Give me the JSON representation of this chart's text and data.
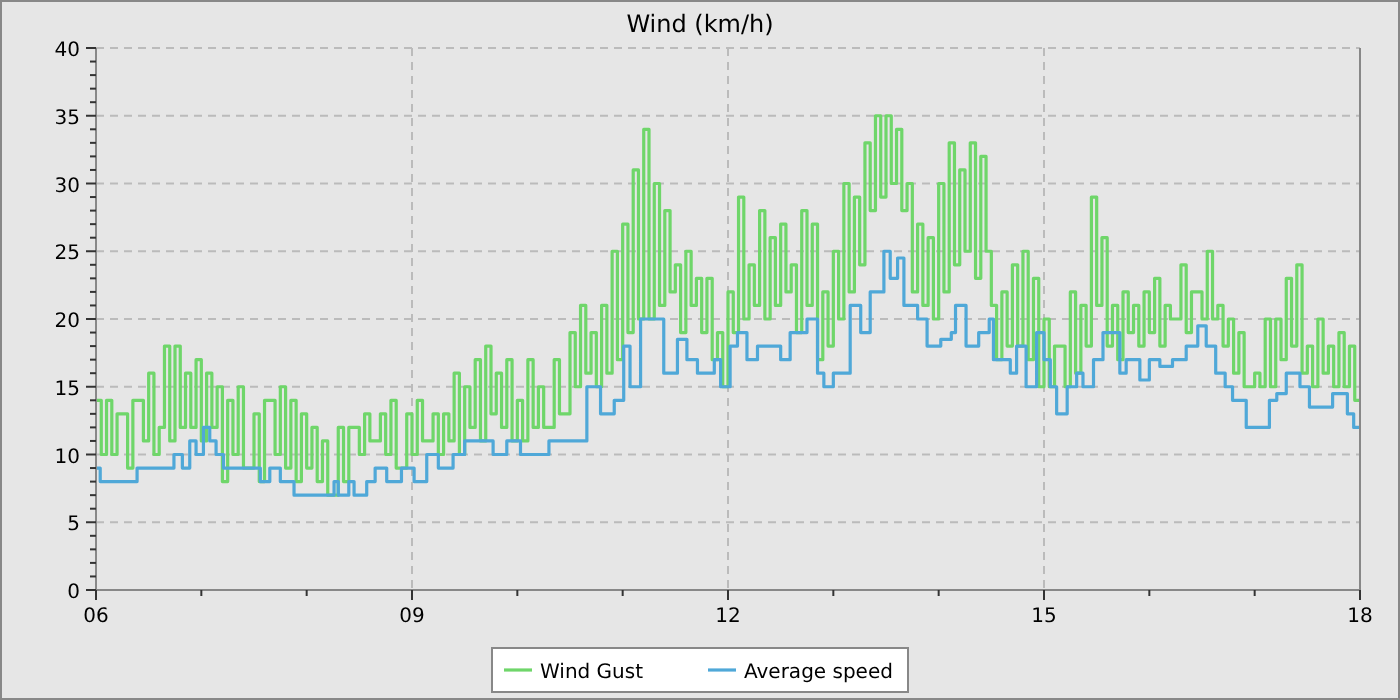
{
  "chart_data": {
    "type": "step",
    "title": "Wind (km/h)",
    "legend": "bottom",
    "grid": true,
    "line_style": "solid",
    "xlim": [
      6,
      18
    ],
    "ylim": [
      0,
      40
    ],
    "xticks": [
      {
        "value": 6,
        "label": "06"
      },
      {
        "value": 7,
        "label": null
      },
      {
        "value": 8,
        "label": null
      },
      {
        "value": 9,
        "label": "09"
      },
      {
        "value": 10,
        "label": null
      },
      {
        "value": 11,
        "label": null
      },
      {
        "value": 12,
        "label": "12"
      },
      {
        "value": 13,
        "label": null
      },
      {
        "value": 14,
        "label": null
      },
      {
        "value": 15,
        "label": "15"
      },
      {
        "value": 16,
        "label": null
      },
      {
        "value": 17,
        "label": null
      },
      {
        "value": 18,
        "label": "18"
      }
    ],
    "yticks": [
      0,
      {
        "value": 1,
        "label": null
      },
      {
        "value": 2,
        "label": null
      },
      {
        "value": 3,
        "label": null
      },
      {
        "value": 4,
        "label": null
      },
      5,
      {
        "value": 6,
        "label": null
      },
      {
        "value": 7,
        "label": null
      },
      {
        "value": 8,
        "label": null
      },
      {
        "value": 9,
        "label": null
      },
      10,
      {
        "value": 11,
        "label": null
      },
      {
        "value": 12,
        "label": null
      },
      {
        "value": 13,
        "label": null
      },
      {
        "value": 14,
        "label": null
      },
      15,
      {
        "value": 16,
        "label": null
      },
      {
        "value": 17,
        "label": null
      },
      {
        "value": 18,
        "label": null
      },
      {
        "value": 19,
        "label": null
      },
      20,
      {
        "value": 21,
        "label": null
      },
      {
        "value": 22,
        "label": null
      },
      {
        "value": 23,
        "label": null
      },
      {
        "value": 24,
        "label": null
      },
      25,
      {
        "value": 26,
        "label": null
      },
      {
        "value": 27,
        "label": null
      },
      {
        "value": 28,
        "label": null
      },
      {
        "value": 29,
        "label": null
      },
      30,
      {
        "value": 31,
        "label": null
      },
      {
        "value": 32,
        "label": null
      },
      {
        "value": 33,
        "label": null
      },
      {
        "value": 34,
        "label": null
      },
      35,
      {
        "value": 36,
        "label": null
      },
      {
        "value": 37,
        "label": null
      },
      {
        "value": 38,
        "label": null
      },
      {
        "value": 39,
        "label": null
      },
      40
    ],
    "series": [
      {
        "name": "Wind Gust",
        "color": "#6fd66a",
        "x": [
          6.0,
          6.05,
          6.1,
          6.15,
          6.2,
          6.3,
          6.35,
          6.45,
          6.5,
          6.55,
          6.6,
          6.65,
          6.7,
          6.75,
          6.8,
          6.85,
          6.9,
          6.95,
          7.0,
          7.05,
          7.1,
          7.15,
          7.2,
          7.25,
          7.3,
          7.35,
          7.4,
          7.5,
          7.55,
          7.6,
          7.7,
          7.75,
          7.8,
          7.85,
          7.9,
          7.95,
          8.0,
          8.05,
          8.1,
          8.15,
          8.2,
          8.3,
          8.35,
          8.4,
          8.5,
          8.55,
          8.6,
          8.7,
          8.75,
          8.8,
          8.85,
          8.95,
          9.0,
          9.05,
          9.1,
          9.2,
          9.25,
          9.3,
          9.35,
          9.4,
          9.45,
          9.5,
          9.55,
          9.6,
          9.65,
          9.7,
          9.75,
          9.8,
          9.85,
          9.9,
          9.95,
          10.0,
          10.05,
          10.1,
          10.15,
          10.2,
          10.25,
          10.35,
          10.4,
          10.5,
          10.55,
          10.6,
          10.65,
          10.7,
          10.75,
          10.8,
          10.85,
          10.9,
          10.95,
          11.0,
          11.05,
          11.1,
          11.15,
          11.2,
          11.25,
          11.3,
          11.35,
          11.4,
          11.45,
          11.5,
          11.55,
          11.6,
          11.65,
          11.7,
          11.75,
          11.8,
          11.85,
          11.9,
          11.95,
          12.0,
          12.05,
          12.1,
          12.15,
          12.2,
          12.25,
          12.3,
          12.35,
          12.4,
          12.45,
          12.5,
          12.55,
          12.6,
          12.65,
          12.7,
          12.75,
          12.8,
          12.85,
          12.9,
          12.95,
          13.0,
          13.05,
          13.1,
          13.15,
          13.2,
          13.25,
          13.3,
          13.35,
          13.4,
          13.45,
          13.5,
          13.55,
          13.6,
          13.65,
          13.7,
          13.75,
          13.8,
          13.85,
          13.9,
          13.95,
          14.0,
          14.05,
          14.1,
          14.15,
          14.2,
          14.25,
          14.3,
          14.35,
          14.4,
          14.45,
          14.5,
          14.55,
          14.6,
          14.65,
          14.7,
          14.75,
          14.8,
          14.85,
          14.9,
          14.95,
          15.0,
          15.05,
          15.1,
          15.2,
          15.25,
          15.3,
          15.35,
          15.4,
          15.45,
          15.5,
          15.55,
          15.6,
          15.65,
          15.7,
          15.75,
          15.8,
          15.85,
          15.9,
          15.95,
          16.0,
          16.05,
          16.1,
          16.15,
          16.2,
          16.3,
          16.35,
          16.4,
          16.5,
          16.55,
          16.6,
          16.65,
          16.7,
          16.75,
          16.8,
          16.85,
          16.9,
          17.0,
          17.05,
          17.1,
          17.15,
          17.2,
          17.25,
          17.3,
          17.35,
          17.4,
          17.45,
          17.5,
          17.55,
          17.6,
          17.65,
          17.7,
          17.75,
          17.8,
          17.85,
          17.9,
          17.95,
          18.0
        ],
        "values": [
          14,
          10,
          14,
          10,
          13,
          9,
          14,
          11,
          16,
          10,
          12,
          18,
          11,
          18,
          12,
          16,
          12,
          17,
          11,
          16,
          12,
          15,
          8,
          14,
          10,
          15,
          9,
          13,
          8,
          14,
          10,
          15,
          9,
          14,
          8,
          13,
          9,
          12,
          8,
          11,
          7,
          12,
          8,
          12,
          10,
          13,
          11,
          13,
          10,
          14,
          9,
          13,
          10,
          14,
          11,
          13,
          10,
          13,
          11,
          16,
          10,
          15,
          12,
          17,
          11,
          18,
          13,
          16,
          12,
          17,
          11,
          14,
          11,
          17,
          12,
          15,
          12,
          17,
          13,
          19,
          15,
          21,
          16,
          19,
          15,
          21,
          16,
          25,
          17,
          27,
          19,
          31,
          20,
          34,
          20,
          30,
          21,
          28,
          22,
          24,
          19,
          25,
          21,
          23,
          19,
          23,
          17,
          19,
          15,
          22,
          19,
          29,
          20,
          24,
          21,
          28,
          20,
          26,
          21,
          27,
          22,
          24,
          19,
          28,
          21,
          27,
          17,
          22,
          18,
          25,
          20,
          30,
          22,
          29,
          24,
          33,
          28,
          35,
          29,
          35,
          30,
          34,
          28,
          30,
          22,
          27,
          21,
          26,
          20,
          30,
          22,
          33,
          24,
          31,
          25,
          33,
          23,
          32,
          25,
          21,
          17,
          22,
          18,
          24,
          18,
          25,
          17,
          23,
          15,
          20,
          15,
          18,
          15,
          22,
          16,
          21,
          18,
          29,
          21,
          26,
          18,
          21,
          17,
          22,
          19,
          21,
          18,
          22,
          19,
          23,
          18,
          21,
          20,
          24,
          19,
          22,
          20,
          25,
          20,
          21,
          18,
          20,
          16,
          19,
          15,
          16,
          15,
          20,
          15,
          20,
          17,
          23,
          18,
          24,
          16,
          18,
          15,
          20,
          16,
          18,
          15,
          19,
          15,
          18,
          14,
          14
        ]
      },
      {
        "name": "Average speed",
        "color": "#4fa8d8",
        "x": [
          6.0,
          6.04,
          6.39,
          6.74,
          6.82,
          6.89,
          6.95,
          7.02,
          7.08,
          7.14,
          7.21,
          7.4,
          7.56,
          7.65,
          7.75,
          7.88,
          8.0,
          8.26,
          8.3,
          8.4,
          8.45,
          8.57,
          8.65,
          8.76,
          8.9,
          9.02,
          9.14,
          9.25,
          9.39,
          9.5,
          9.77,
          9.9,
          10.03,
          10.16,
          10.3,
          10.54,
          10.66,
          10.79,
          10.92,
          11.01,
          11.07,
          11.17,
          11.3,
          11.39,
          11.52,
          11.61,
          11.71,
          11.87,
          11.93,
          12.02,
          12.09,
          12.18,
          12.28,
          12.37,
          12.5,
          12.59,
          12.69,
          12.75,
          12.85,
          12.91,
          13.0,
          13.1,
          13.16,
          13.26,
          13.35,
          13.48,
          13.54,
          13.61,
          13.67,
          13.8,
          13.89,
          14.02,
          14.12,
          14.16,
          14.26,
          14.38,
          14.48,
          14.52,
          14.68,
          14.74,
          14.83,
          14.93,
          15.0,
          15.06,
          15.12,
          15.22,
          15.31,
          15.37,
          15.47,
          15.56,
          15.72,
          15.78,
          15.91,
          16.0,
          16.1,
          16.22,
          16.35,
          16.46,
          16.54,
          16.63,
          16.72,
          16.79,
          16.92,
          16.99,
          17.14,
          17.21,
          17.3,
          17.43,
          17.52,
          17.62,
          17.74,
          17.88,
          17.94,
          18.0
        ],
        "values": [
          9,
          8,
          9,
          10,
          9,
          11,
          10,
          12,
          11,
          10,
          9,
          9,
          8,
          9,
          8,
          7,
          7,
          8,
          7,
          8,
          7,
          8,
          9,
          8,
          9,
          8,
          10,
          9,
          10,
          11,
          10,
          11,
          10,
          10,
          11,
          11,
          15,
          13,
          14,
          18,
          15,
          20,
          20,
          16,
          18.5,
          17,
          16,
          17,
          15,
          18,
          19,
          17,
          18,
          18,
          17,
          19,
          19,
          20,
          16,
          15,
          16,
          16,
          21,
          19,
          22,
          25,
          23,
          24.5,
          21,
          20,
          18,
          18.5,
          19,
          21,
          18,
          19,
          20,
          17,
          16,
          18,
          15,
          19,
          17,
          15,
          13,
          15,
          16,
          15,
          17,
          19,
          16,
          17,
          15.5,
          17,
          16.5,
          17,
          18,
          19.5,
          18,
          16,
          15,
          14,
          12,
          12,
          14,
          14.5,
          16,
          15,
          13.5,
          13.5,
          14.5,
          13,
          12,
          12
        ]
      }
    ]
  }
}
